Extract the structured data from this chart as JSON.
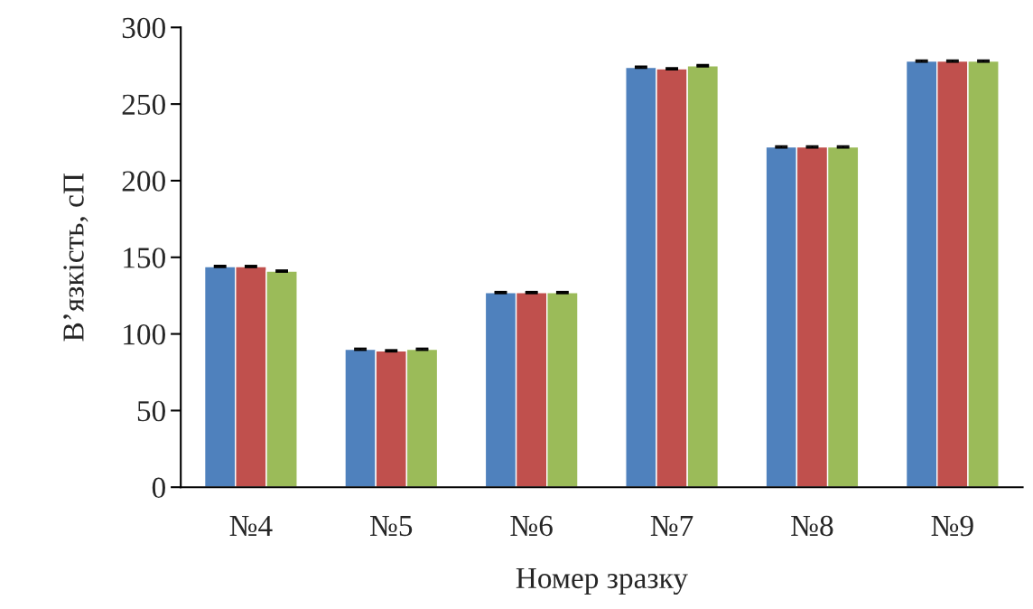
{
  "chart_data": {
    "type": "bar",
    "xlabel": "Номер зразку",
    "ylabel": "В’язкість, сП",
    "categories": [
      "№4",
      "№5",
      "№6",
      "№7",
      "№8",
      "№9"
    ],
    "series": [
      {
        "color": "#4f81bd",
        "values": [
          144,
          90,
          127,
          274,
          222,
          278
        ],
        "errors": [
          0.5,
          0.5,
          0.5,
          0.5,
          0.5,
          0.5
        ]
      },
      {
        "color": "#c0504d",
        "values": [
          144,
          89,
          127,
          273,
          222,
          278
        ],
        "errors": [
          0.5,
          0.5,
          0.5,
          0.5,
          0.5,
          0.5
        ]
      },
      {
        "color": "#9bbb59",
        "values": [
          141,
          90,
          127,
          275,
          222,
          278
        ],
        "errors": [
          0.5,
          0.5,
          0.5,
          0.5,
          0.5,
          0.5
        ]
      }
    ],
    "ylim": [
      0,
      300
    ],
    "yticks": [
      0,
      50,
      100,
      150,
      200,
      250,
      300
    ],
    "grid": false,
    "legend": false
  }
}
